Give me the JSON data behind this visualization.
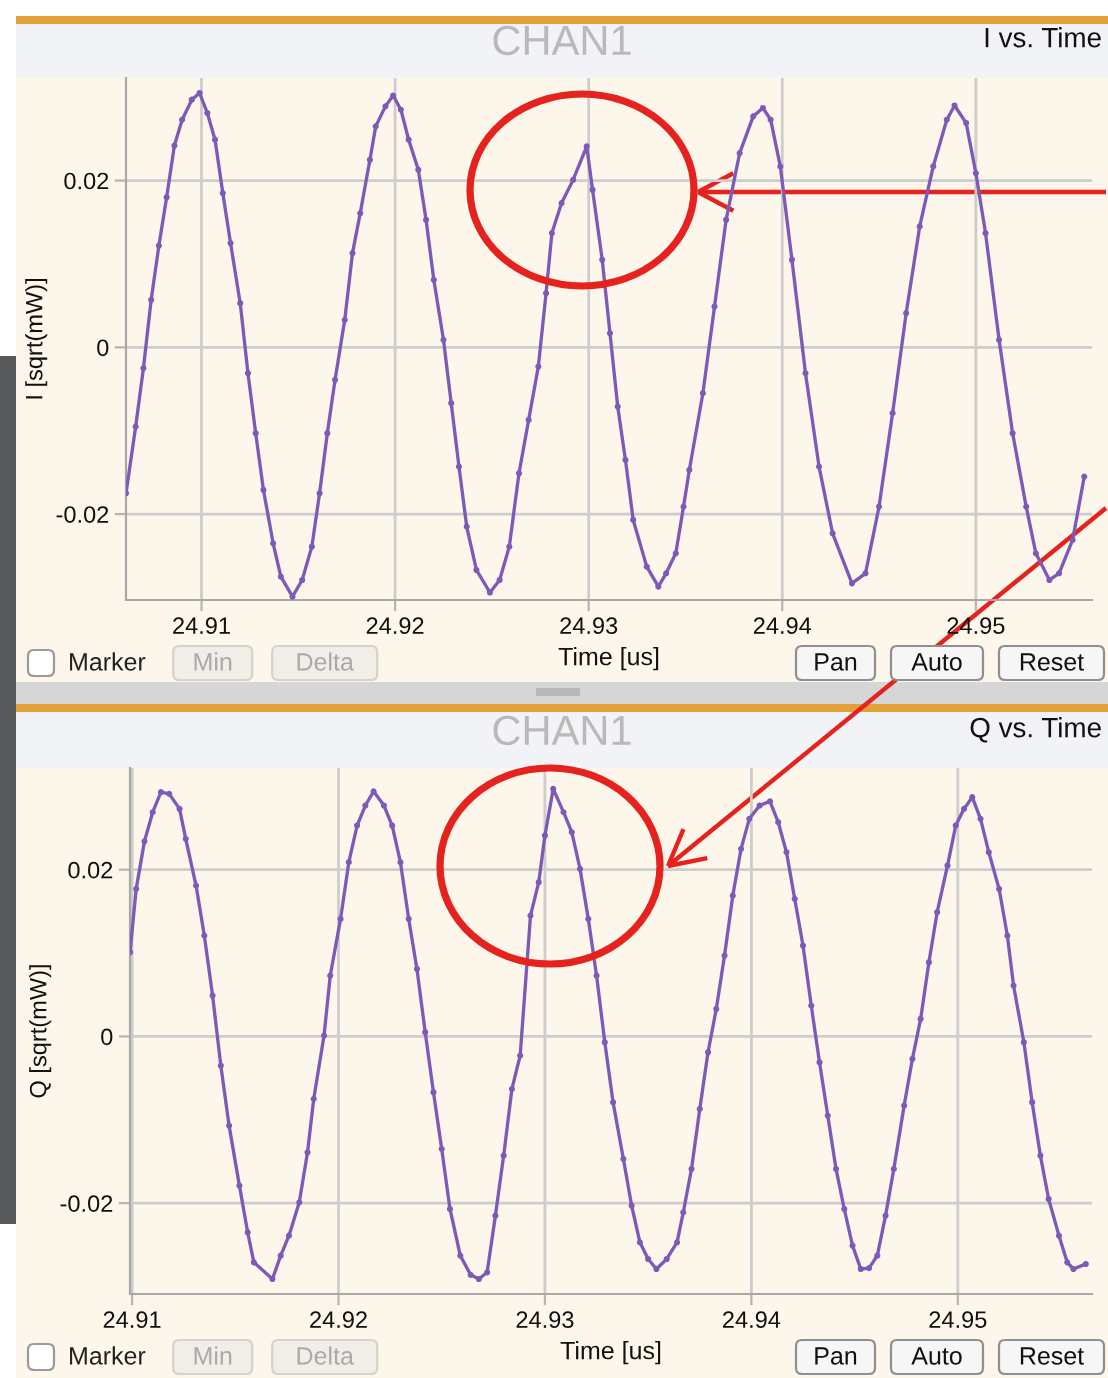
{
  "chart_data": [
    {
      "type": "line",
      "title": "CHAN1",
      "subtitle": "I vs. Time",
      "xlabel": "Time [us]",
      "ylabel": "I [sqrt(mW)]",
      "color": "#7d5ab8",
      "marker": "circle",
      "grid": true,
      "xlim": [
        24.9061,
        24.956
      ],
      "ylim": [
        -0.0303,
        0.0323
      ],
      "xticks": [
        24.91,
        24.92,
        24.93,
        24.94,
        24.95
      ],
      "yticks": [
        -0.02,
        0,
        0.02
      ],
      "annotations": [
        "Marker",
        "Min",
        "Delta",
        "Pan",
        "Auto",
        "Reset"
      ],
      "x": [
        24.9061,
        24.9066,
        24.907,
        24.9074,
        24.9078,
        24.9082,
        24.9086,
        24.909,
        24.9095,
        24.9099,
        24.9103,
        24.9107,
        24.9111,
        24.9115,
        24.912,
        24.9124,
        24.9128,
        24.9132,
        24.9137,
        24.9141,
        24.9147,
        24.9152,
        24.9157,
        24.9161,
        24.9165,
        24.9169,
        24.9174,
        24.9178,
        24.9182,
        24.9187,
        24.919,
        24.9195,
        24.9199,
        24.9203,
        24.9207,
        24.9212,
        24.9216,
        24.922,
        24.9225,
        24.9229,
        24.9233,
        24.9237,
        24.9242,
        24.9249,
        24.9254,
        24.9259,
        24.9264,
        24.9269,
        24.9274,
        24.9278,
        24.9281,
        24.9286,
        24.9292,
        24.9299,
        24.9302,
        24.9307,
        24.9311,
        24.9315,
        24.9319,
        24.9323,
        24.933,
        24.9336,
        24.934,
        24.9345,
        24.9349,
        24.9352,
        24.9359,
        24.9365,
        24.9371,
        24.9378,
        24.9385,
        24.939,
        24.9394,
        24.9399,
        24.9405,
        24.9412,
        24.9419,
        24.9426,
        24.9436,
        24.9443,
        24.945,
        24.9457,
        24.9464,
        24.9471,
        24.9478,
        24.9485,
        24.9489,
        24.9495,
        24.95,
        24.9505,
        24.9512,
        24.9519,
        24.9526,
        24.9531,
        24.9538,
        24.9543,
        24.955,
        24.9556
      ],
      "values": [
        -0.0175,
        -0.0095,
        -0.0025,
        0.0057,
        0.0122,
        0.018,
        0.0242,
        0.0273,
        0.0297,
        0.0305,
        0.0281,
        0.0249,
        0.0185,
        0.0125,
        0.0053,
        -0.0031,
        -0.0103,
        -0.0171,
        -0.0235,
        -0.0275,
        -0.0299,
        -0.0279,
        -0.0239,
        -0.0175,
        -0.0103,
        -0.0039,
        0.0033,
        0.0113,
        0.0161,
        0.0225,
        0.0265,
        0.0289,
        0.0302,
        0.0285,
        0.0249,
        0.0213,
        0.0153,
        0.0081,
        0.0009,
        -0.0067,
        -0.0143,
        -0.0215,
        -0.0267,
        -0.0294,
        -0.0279,
        -0.0239,
        -0.0151,
        -0.0087,
        -0.0023,
        0.0065,
        0.0137,
        0.0173,
        0.0201,
        0.0241,
        0.0189,
        0.0105,
        0.0017,
        -0.0071,
        -0.0135,
        -0.0207,
        -0.0263,
        -0.0287,
        -0.0271,
        -0.0247,
        -0.0191,
        -0.0147,
        -0.0055,
        0.0049,
        0.0153,
        0.0233,
        0.0277,
        0.0287,
        0.0273,
        0.0217,
        0.0105,
        -0.0031,
        -0.0143,
        -0.0223,
        -0.0283,
        -0.0271,
        -0.0191,
        -0.0079,
        0.0041,
        0.0145,
        0.0217,
        0.0273,
        0.029,
        0.0269,
        0.0209,
        0.0137,
        0.0009,
        -0.0103,
        -0.0191,
        -0.0247,
        -0.0279,
        -0.0271,
        -0.0231,
        -0.0155
      ]
    },
    {
      "type": "line",
      "title": "CHAN1",
      "subtitle": "Q vs. Time",
      "xlabel": "Time [us]",
      "ylabel": "Q [sqrt(mW)]",
      "color": "#7d5ab8",
      "marker": "circle",
      "grid": true,
      "xlim": [
        24.9099,
        24.9565
      ],
      "ylim": [
        -0.0309,
        0.0322
      ],
      "xticks": [
        24.91,
        24.92,
        24.93,
        24.94,
        24.95
      ],
      "yticks": [
        -0.02,
        0,
        0.02
      ],
      "annotations": [
        "Marker",
        "Min",
        "Delta",
        "Pan",
        "Auto",
        "Reset"
      ],
      "x": [
        24.9099,
        24.9102,
        24.9106,
        24.911,
        24.9114,
        24.9118,
        24.9123,
        24.9126,
        24.9131,
        24.9135,
        24.9139,
        24.9143,
        24.9147,
        24.9152,
        24.9156,
        24.9159,
        24.9168,
        24.9172,
        24.9176,
        24.9181,
        24.9185,
        24.9188,
        24.9193,
        24.9196,
        24.9201,
        24.9205,
        24.9209,
        24.9213,
        24.9217,
        24.9222,
        24.9226,
        24.923,
        24.9234,
        24.9238,
        24.9242,
        24.9246,
        24.925,
        24.9254,
        24.9259,
        24.9264,
        24.9268,
        24.9272,
        24.9276,
        24.928,
        24.9284,
        24.9288,
        24.9293,
        24.9297,
        24.93,
        24.9304,
        24.9309,
        24.9313,
        24.9317,
        24.9321,
        24.9325,
        24.9329,
        24.9333,
        24.9338,
        24.9342,
        24.9346,
        24.935,
        24.9354,
        24.9359,
        24.9364,
        24.9367,
        24.9371,
        24.9375,
        24.9379,
        24.9383,
        24.9387,
        24.9391,
        24.9395,
        24.9399,
        24.9404,
        24.9409,
        24.9413,
        24.9417,
        24.9421,
        24.9425,
        24.9429,
        24.9433,
        24.9437,
        24.9441,
        24.9445,
        24.9449,
        24.9453,
        24.9457,
        24.9461,
        24.9465,
        24.9469,
        24.9474,
        24.9478,
        24.9482,
        24.9486,
        24.949,
        24.9495,
        24.9499,
        24.9503,
        24.9507,
        24.9511,
        24.9515,
        24.952,
        24.9524,
        24.9527,
        24.9532,
        24.9536,
        24.954,
        24.9544,
        24.9549,
        24.9553,
        24.9556,
        24.9562
      ],
      "values": [
        0.0101,
        0.0177,
        0.0234,
        0.0269,
        0.0293,
        0.0291,
        0.0273,
        0.0237,
        0.0181,
        0.0121,
        0.0049,
        -0.0035,
        -0.0107,
        -0.0179,
        -0.0235,
        -0.0271,
        -0.0291,
        -0.0263,
        -0.0239,
        -0.0199,
        -0.0139,
        -0.0075,
        0.0001,
        0.0073,
        0.0141,
        0.0209,
        0.0253,
        0.0277,
        0.0294,
        0.0277,
        0.0253,
        0.0209,
        0.0141,
        0.0081,
        0.0005,
        -0.0067,
        -0.0135,
        -0.0207,
        -0.0263,
        -0.0286,
        -0.0291,
        -0.0283,
        -0.0215,
        -0.0143,
        -0.0063,
        -0.0023,
        0.0145,
        0.0185,
        0.0241,
        0.0297,
        0.0269,
        0.0245,
        0.0201,
        0.0141,
        0.0073,
        -0.0007,
        -0.0079,
        -0.0147,
        -0.0203,
        -0.0247,
        -0.0267,
        -0.0279,
        -0.0267,
        -0.0247,
        -0.0211,
        -0.0159,
        -0.0087,
        -0.0019,
        0.0033,
        0.0097,
        0.0169,
        0.0225,
        0.0261,
        0.0277,
        0.0282,
        0.0257,
        0.0221,
        0.0165,
        0.0109,
        0.0037,
        -0.0031,
        -0.0095,
        -0.0159,
        -0.0207,
        -0.0251,
        -0.0279,
        -0.0278,
        -0.0263,
        -0.0215,
        -0.0159,
        -0.0083,
        -0.0027,
        0.0021,
        0.0089,
        0.0149,
        0.0205,
        0.0253,
        0.0273,
        0.0287,
        0.0261,
        0.0221,
        0.0177,
        0.0121,
        0.0061,
        -0.0007,
        -0.0079,
        -0.0143,
        -0.0195,
        -0.0239,
        -0.0271,
        -0.0279,
        -0.0273
      ]
    }
  ]
}
